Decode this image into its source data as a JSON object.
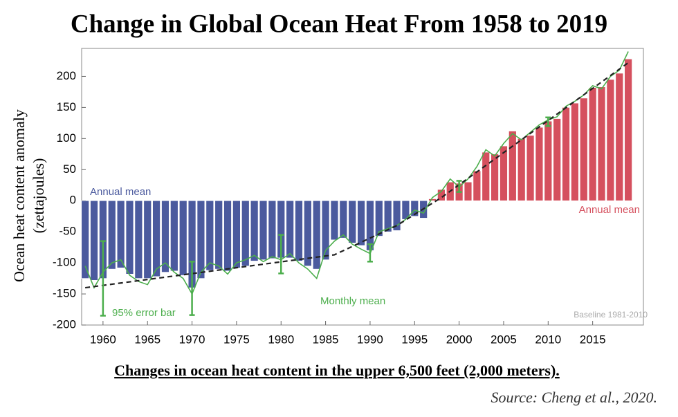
{
  "chart_data": {
    "type": "bar",
    "title": "Change in Global Ocean Heat From 1958 to 2019",
    "y_label": [
      "Ocean heat content anomaly",
      "(zettajoules)"
    ],
    "caption": "Changes in ocean heat content in the upper 6,500 feet (2,000 meters).",
    "source": "Source: Cheng et al., 2020.",
    "annotations": [
      "Annual mean",
      "Annual mean",
      "Monthly mean",
      "95% error bar",
      "Baseline 1981-2010"
    ],
    "x": [
      1958,
      1959,
      1960,
      1961,
      1962,
      1963,
      1964,
      1965,
      1966,
      1967,
      1968,
      1969,
      1970,
      1971,
      1972,
      1973,
      1974,
      1975,
      1976,
      1977,
      1978,
      1979,
      1980,
      1981,
      1982,
      1983,
      1984,
      1985,
      1986,
      1987,
      1988,
      1989,
      1990,
      1991,
      1992,
      1993,
      1994,
      1995,
      1996,
      1997,
      1998,
      1999,
      2000,
      2001,
      2002,
      2003,
      2004,
      2005,
      2006,
      2007,
      2008,
      2009,
      2010,
      2011,
      2012,
      2013,
      2014,
      2015,
      2016,
      2017,
      2018,
      2019
    ],
    "values": [
      -125,
      -128,
      -125,
      -110,
      -108,
      -118,
      -125,
      -125,
      -122,
      -115,
      -113,
      -120,
      -140,
      -125,
      -112,
      -110,
      -113,
      -108,
      -105,
      -97,
      -95,
      -93,
      -92,
      -92,
      -97,
      -105,
      -110,
      -95,
      -63,
      -60,
      -68,
      -72,
      -80,
      -57,
      -50,
      -48,
      -30,
      -25,
      -28,
      3,
      18,
      30,
      28,
      30,
      48,
      78,
      75,
      88,
      112,
      100,
      105,
      118,
      128,
      132,
      150,
      157,
      165,
      182,
      183,
      195,
      205,
      228
    ],
    "color_negative": "#4b5a9e",
    "color_positive": "#d5505e",
    "monthly": {
      "color": "#4cae4c",
      "values": [
        -105,
        -140,
        -115,
        -100,
        -95,
        -120,
        -130,
        -135,
        -110,
        -100,
        -115,
        -125,
        -150,
        -115,
        -100,
        -105,
        -118,
        -100,
        -95,
        -88,
        -98,
        -90,
        -95,
        -85,
        -100,
        -110,
        -125,
        -80,
        -65,
        -55,
        -70,
        -78,
        -85,
        -50,
        -45,
        -40,
        -30,
        -15,
        -20,
        5,
        15,
        35,
        22,
        35,
        55,
        82,
        72,
        92,
        108,
        98,
        110,
        122,
        130,
        135,
        152,
        160,
        170,
        185,
        180,
        200,
        210,
        240
      ]
    },
    "trend": {
      "x": [
        1958,
        1986,
        1993,
        1998,
        2019
      ],
      "values": [
        -140,
        -87,
        -40,
        5,
        222
      ]
    },
    "error_bars": {
      "x": [
        1960,
        1970,
        1980,
        1990,
        2000,
        2010
      ],
      "values": [
        -125,
        -141,
        -86,
        -84,
        23,
        127
      ],
      "errors": [
        60,
        43,
        31,
        14,
        9,
        7
      ]
    },
    "xlim": [
      1957.6,
      2020.7
    ],
    "ylim": [
      -200,
      245
    ],
    "xticks": [
      1960,
      1965,
      1970,
      1975,
      1980,
      1985,
      1990,
      1995,
      2000,
      2005,
      2010,
      2015
    ],
    "yticks": [
      -200,
      -150,
      -100,
      -50,
      0,
      50,
      100,
      150,
      200
    ]
  }
}
